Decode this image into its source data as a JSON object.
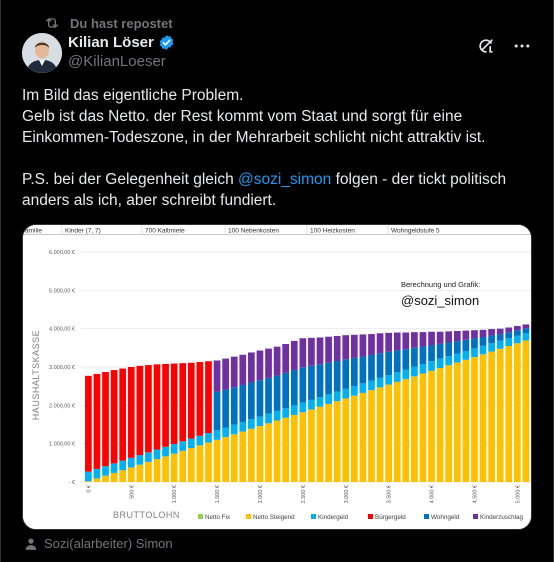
{
  "repost": {
    "label": "Du hast repostet",
    "icon": "repost-icon"
  },
  "author": {
    "name": "Kilian Löser",
    "handle": "@KilianLoeser",
    "verified_color": "#1d9bf0"
  },
  "post": {
    "line1": "Im Bild das eigentliche Problem.",
    "line2": "Gelb ist das Netto. der Rest kommt vom Staat und sorgt für eine",
    "line3": "Einkommen-Todeszone, in der Mehrarbeit schlicht nicht attraktiv ist.",
    "ps_before": "P.S. bei der Gelegenheit gleich ",
    "ps_mention": "@sozi_simon",
    "ps_after": " folgen - der tickt politisch",
    "line5": "anders als ich, aber schreibt fundiert."
  },
  "footer": {
    "tagged": "Sozi(alarbeiter) Simon"
  },
  "chart_data": {
    "type": "bar",
    "header": [
      "amilie",
      "Kinder (7, 7)",
      "700 Kaltmiete",
      "100 Nebenkosten",
      "100 Heizkosten",
      "Wohngeldstufe 5"
    ],
    "ylabel": "HAUSHALTSKASSE",
    "xlabel": "BRUTTOLOHN",
    "annotation_small": "Berechnung und Grafik:",
    "annotation_large": "@sozi_simon",
    "ylim": [
      0,
      6000
    ],
    "yticks": [
      "6.000,00 €",
      "5.000,00 €",
      "4.000,00 €",
      "3.000,00 €",
      "2.000,00 €",
      "1.000,00 €",
      "- €"
    ],
    "xticks": [
      "0 €",
      "500 €",
      "1.000 €",
      "1.500 €",
      "2.000 €",
      "2.500 €",
      "3.000 €",
      "3.500 €",
      "4.000 €",
      "4.500 €",
      "5.000 €"
    ],
    "x_step": 100,
    "legend_position": "bottom-right",
    "series": [
      {
        "name": "Netto Fix",
        "color": "#92d050"
      },
      {
        "name": "Netto Steigend",
        "color": "#ffc000"
      },
      {
        "name": "Kindergeld",
        "color": "#00b0f0"
      },
      {
        "name": "Bürgergeld",
        "color": "#ff0000"
      },
      {
        "name": "Wohngeld",
        "color": "#0070c0"
      },
      {
        "name": "Kinderzuschlag",
        "color": "#7030a0"
      }
    ],
    "totals": [
      2770,
      2820,
      2870,
      2920,
      2960,
      3000,
      3030,
      3050,
      3070,
      3080,
      3090,
      3100,
      3110,
      3130,
      3150,
      3170,
      3220,
      3270,
      3320,
      3380,
      3430,
      3480,
      3530,
      3600,
      3680,
      3750,
      3760,
      3770,
      3790,
      3810,
      3830,
      3840,
      3850,
      3860,
      3880,
      3890,
      3900,
      3900,
      3910,
      3910,
      3920,
      3920,
      3930,
      3940,
      3950,
      3960,
      3970,
      3990,
      4000,
      4030,
      4070,
      4110,
      4150
    ]
  }
}
